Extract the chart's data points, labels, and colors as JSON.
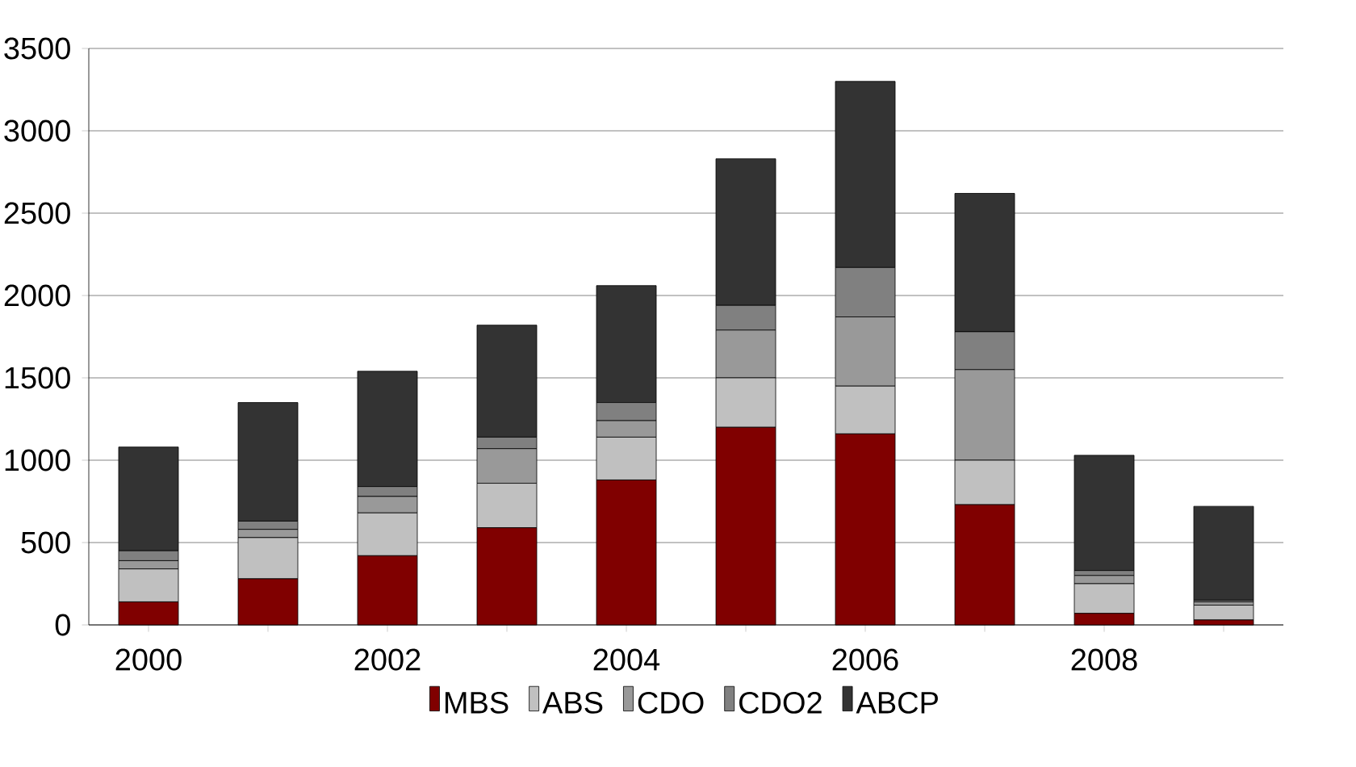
{
  "chart_data": {
    "type": "bar",
    "stacked": true,
    "categories": [
      "2000",
      null,
      "2002",
      null,
      "2004",
      null,
      "2006",
      null,
      "2008",
      null
    ],
    "series": [
      {
        "name": "MBS",
        "color": "#800000",
        "values": [
          140,
          280,
          420,
          590,
          880,
          1200,
          1160,
          730,
          70,
          30
        ]
      },
      {
        "name": "ABS",
        "color": "#c0c0c0",
        "values": [
          200,
          250,
          260,
          270,
          260,
          300,
          290,
          270,
          180,
          90
        ]
      },
      {
        "name": "CDO",
        "color": "#999999",
        "values": [
          50,
          50,
          100,
          210,
          100,
          290,
          420,
          550,
          50,
          20
        ]
      },
      {
        "name": "CDO2",
        "color": "#808080",
        "values": [
          60,
          50,
          60,
          70,
          110,
          150,
          300,
          230,
          30,
          10
        ]
      },
      {
        "name": "ABCP",
        "color": "#333333",
        "values": [
          630,
          720,
          700,
          680,
          710,
          890,
          1130,
          840,
          700,
          570
        ]
      }
    ],
    "ylim": [
      0,
      3500
    ],
    "yticks": [
      0,
      500,
      1000,
      1500,
      2000,
      2500,
      3000,
      3500
    ],
    "grid": "y",
    "legend": "bottom"
  }
}
